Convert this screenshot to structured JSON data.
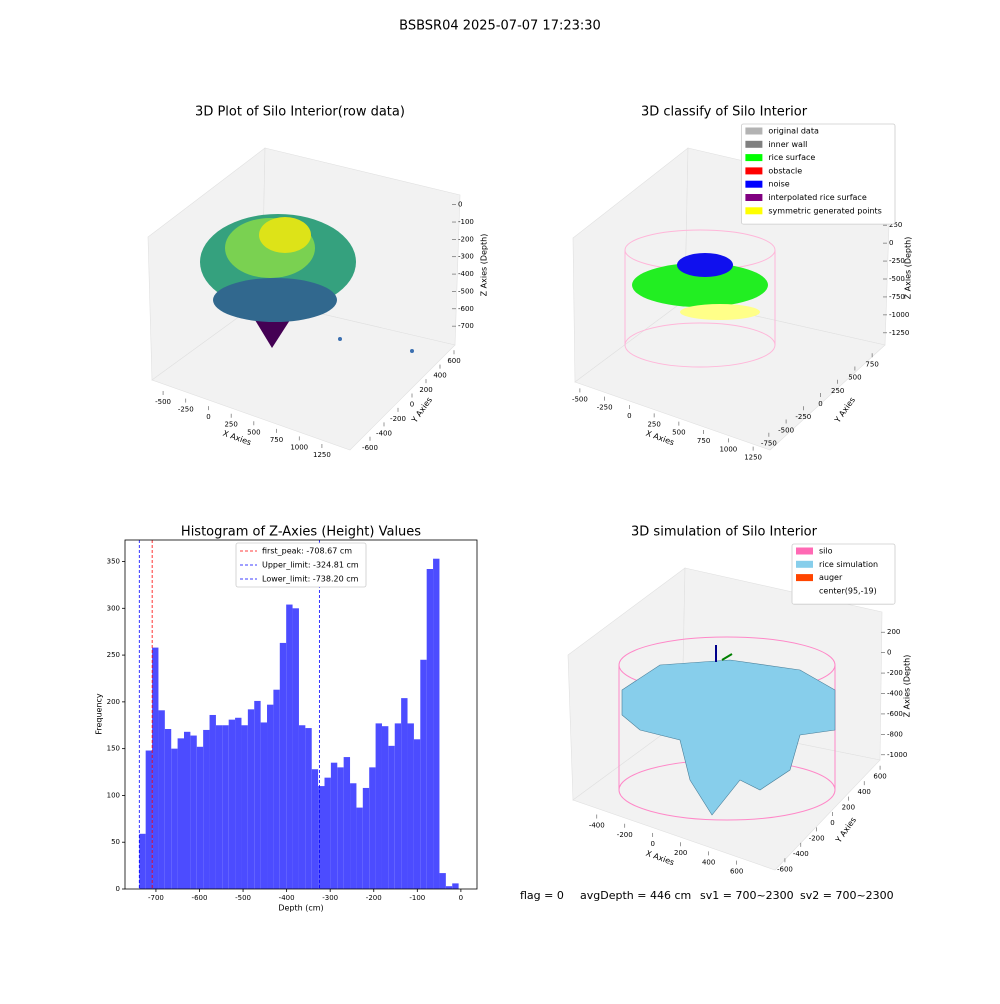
{
  "title": "BSBSR04 2025-07-07 17:23:30",
  "chart_data": [
    {
      "type": "scatter3d",
      "title": "3D Plot of Silo Interior(row data)",
      "xlabel": "X Axies",
      "ylabel": "Y Axies",
      "zlabel": "Z Axies (Depth)",
      "xlim": [
        -600,
        1350
      ],
      "xticks": [
        -500,
        -250,
        0,
        250,
        500,
        750,
        1000,
        1250
      ],
      "ylim": [
        -700,
        700
      ],
      "yticks": [
        -600,
        -400,
        -200,
        0,
        200,
        400,
        600
      ],
      "zlim": [
        -800,
        50
      ],
      "zticks": [
        -700,
        -600,
        -500,
        -400,
        -300,
        -200,
        -100,
        0
      ]
    },
    {
      "type": "scatter3d",
      "title": "3D classify of Silo Interior",
      "xlabel": "X Axies",
      "ylabel": "Y Axies",
      "zlabel": "Z Axies (Depth)",
      "xlim": [
        -600,
        1350
      ],
      "xticks": [
        -500,
        -250,
        0,
        250,
        500,
        750,
        1000,
        1250
      ],
      "ylim": [
        -850,
        850
      ],
      "yticks": [
        -750,
        -500,
        -250,
        0,
        250,
        500,
        750
      ],
      "zlim": [
        -1350,
        350
      ],
      "zticks": [
        -1250,
        -1000,
        -750,
        -500,
        -250,
        0,
        250
      ],
      "legend": [
        {
          "name": "original data",
          "color": "#b3b3b3"
        },
        {
          "name": "inner wall",
          "color": "#808080"
        },
        {
          "name": "rice surface",
          "color": "#00ff00"
        },
        {
          "name": "obstacle",
          "color": "#ff0000"
        },
        {
          "name": "noise",
          "color": "#0000ff"
        },
        {
          "name": "interpolated rice surface",
          "color": "#800080"
        },
        {
          "name": "symmetric generated points",
          "color": "#ffff00"
        }
      ]
    },
    {
      "type": "histogram",
      "title": "Histogram of Z-Axies (Height) Values",
      "xlabel": "Depth (cm)",
      "ylabel": "Frequency",
      "color": "#4c4cff",
      "bins": [
        -738.2,
        -723.54,
        -708.88,
        -694.22,
        -679.56,
        -664.9,
        -650.24,
        -635.58,
        -620.92,
        -606.26,
        -591.6,
        -576.94,
        -562.28,
        -547.62,
        -532.96,
        -518.3,
        -503.64,
        -488.98,
        -474.32,
        -459.66,
        -445.0,
        -430.34,
        -415.68,
        -401.02,
        -386.36,
        -371.7,
        -357.04,
        -342.38,
        -327.72,
        -313.06,
        -298.4,
        -283.74,
        -269.08,
        -254.42,
        -239.76,
        -225.1,
        -210.44,
        -195.78,
        -181.12,
        -166.46,
        -151.8,
        -137.14,
        -122.48,
        -107.82,
        -93.16,
        -78.5,
        -63.84,
        -49.18,
        -34.52,
        -19.86,
        -5.2
      ],
      "values": [
        59,
        148,
        258,
        191,
        171,
        150,
        161,
        168,
        164,
        152,
        170,
        186,
        175,
        175,
        181,
        183,
        175,
        192,
        201,
        178,
        197,
        213,
        263,
        304,
        300,
        175,
        172,
        128,
        110,
        119,
        135,
        130,
        141,
        113,
        87,
        108,
        130,
        177,
        174,
        153,
        177,
        204,
        177,
        160,
        245,
        342,
        353,
        17,
        3,
        6
      ],
      "xlim": [
        -771,
        37
      ],
      "xticks": [
        -700,
        -600,
        -500,
        -400,
        -300,
        -200,
        -100,
        0
      ],
      "ylim": [
        0,
        373
      ],
      "yticks": [
        0,
        50,
        100,
        150,
        200,
        250,
        300,
        350
      ],
      "vlines": [
        {
          "name": "first_peak: -708.67 cm",
          "value": -708.67,
          "color": "#ff0000"
        },
        {
          "name": "Upper_limit: -324.81 cm",
          "value": -324.81,
          "color": "#0000ff"
        },
        {
          "name": "Lower_limit: -738.20 cm",
          "value": -738.2,
          "color": "#0000ff"
        }
      ]
    },
    {
      "type": "surface3d",
      "title": "3D simulation of Silo Interior",
      "xlabel": "X Axies",
      "ylabel": "Y Axies",
      "zlabel": "Z Axies (Depth)",
      "xlim": [
        -520,
        760
      ],
      "xticks": [
        -400,
        -200,
        0,
        200,
        400,
        600
      ],
      "ylim": [
        -700,
        700
      ],
      "yticks": [
        -600,
        -400,
        -200,
        0,
        200,
        400,
        600
      ],
      "zlim": [
        -1100,
        300
      ],
      "zticks": [
        -1000,
        -800,
        -600,
        -400,
        -200,
        0,
        200
      ],
      "legend": [
        {
          "name": "silo",
          "color": "#ff69b4"
        },
        {
          "name": "rice simulation",
          "color": "#87ceeb"
        },
        {
          "name": "auger",
          "color": "#ff4500"
        },
        {
          "name": "center(95,-19)",
          "color": "#ffffff"
        }
      ]
    }
  ],
  "footer": [
    "flag = 0",
    "avgDepth = 446 cm",
    "sv1 = 700~2300",
    "sv2 = 700~2300"
  ]
}
